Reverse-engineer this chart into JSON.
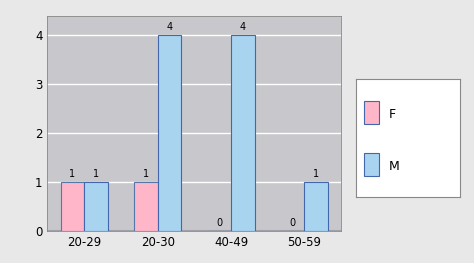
{
  "categories": [
    "20-29",
    "20-30",
    "40-49",
    "50-59"
  ],
  "F_values": [
    1,
    1,
    0,
    0
  ],
  "M_values": [
    1,
    4,
    4,
    1
  ],
  "F_color": "#FFB6C8",
  "M_color": "#A8D4F0",
  "F_edge_color": "#5577AA",
  "M_edge_color": "#4466AA",
  "ylim": [
    0,
    4.4
  ],
  "yticks": [
    0,
    1,
    2,
    3,
    4
  ],
  "fig_facecolor": "#E8E8E8",
  "plot_facecolor": "#C8C8CC",
  "bar_width": 0.32,
  "label_fontsize": 7,
  "tick_fontsize": 8.5,
  "grid_color": "#B0B0B8",
  "floor_color": "#A0A0A8"
}
